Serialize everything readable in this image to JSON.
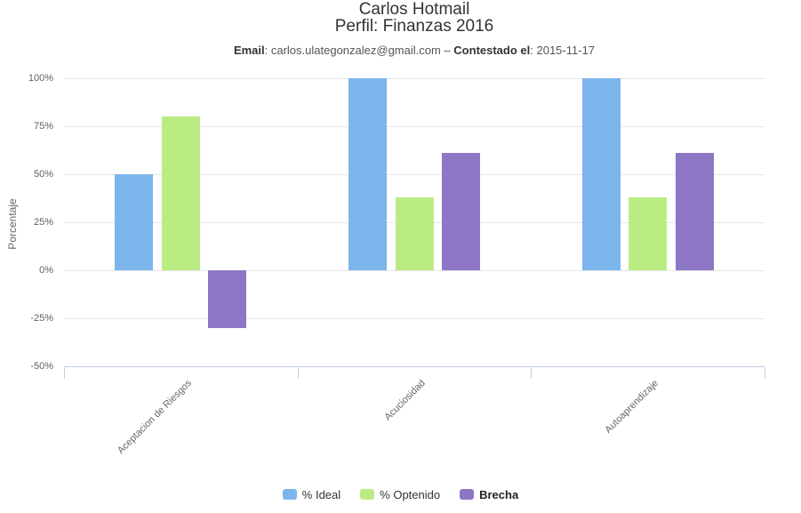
{
  "header": {
    "meta": {
      "email_label": "Email",
      "email_value": ": carlos.ulategonzalez@gmail.com",
      "separator": " – ",
      "answered_label": "Contestado el",
      "answered_value": ": 2015-11-17"
    }
  },
  "chart_data": {
    "type": "bar",
    "title": "Carlos Hotmail",
    "subtitle": "Perfil: Finanzas 2016",
    "categories": [
      "Aceptacion de Riesgos",
      "Acuciosidad",
      "Autoaprendizaje"
    ],
    "series": [
      {
        "name": "% Ideal",
        "color": "#7cb5ec",
        "values": [
          50,
          100,
          100
        ],
        "legend_bold": false
      },
      {
        "name": "% Optenido",
        "color": "#bbec83",
        "values": [
          80,
          38,
          38
        ],
        "legend_bold": false
      },
      {
        "name": "Brecha",
        "color": "#8d76c5",
        "values": [
          -30,
          61,
          61
        ],
        "legend_bold": true
      }
    ],
    "xlabel": "",
    "ylabel": "Porcentaje",
    "ylim": [
      -50,
      100
    ],
    "ytick_step": 25,
    "ytick_labels": [
      "100%",
      "75%",
      "50%",
      "25%",
      "0%",
      "-25%",
      "-50%"
    ],
    "grid": true,
    "legend_position": "bottom"
  },
  "colors": {
    "background": "#ffffff",
    "gridline": "#e6e6e6",
    "axis_line": "#c3d0e0",
    "tick_label_text": "#606060",
    "title_text": "#333333",
    "meta_text": "#555555",
    "series_ideal": "#7cb5ec",
    "series_optenido": "#bbec83",
    "series_brecha": "#8d76c5"
  }
}
